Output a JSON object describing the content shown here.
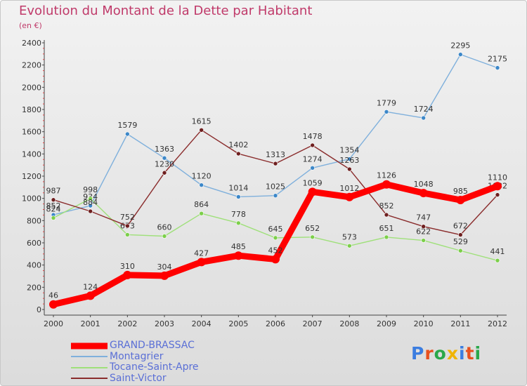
{
  "title": "Evolution du Montant de la Dette par Habitant",
  "unit_label": "(en €)",
  "logo": {
    "text": "Proxiti",
    "letter_colors": [
      "#3b7de0",
      "#e8501e",
      "#2aa84a",
      "#f0b400",
      "#3b7de0",
      "#e8501e",
      "#2aa84a"
    ]
  },
  "chart_data": {
    "type": "line",
    "x": [
      "2000",
      "2001",
      "2002",
      "2003",
      "2004",
      "2005",
      "2006",
      "2007",
      "2008",
      "2009",
      "2010",
      "2011",
      "2012"
    ],
    "ylim": [
      0,
      2400
    ],
    "yticks": [
      0,
      200,
      400,
      600,
      800,
      1000,
      1200,
      1400,
      1600,
      1800,
      2000,
      2200,
      2400
    ],
    "grid": false,
    "legend_position": "bottom-left",
    "series": [
      {
        "name": "GRAND-BRASSAC",
        "color": "#ff0000",
        "emphasis": true,
        "values": [
          46,
          124,
          310,
          304,
          427,
          485,
          452,
          1059,
          1012,
          1126,
          1048,
          985,
          1110
        ]
      },
      {
        "name": "Montagrier",
        "color": "#7fb0dc",
        "point_color": "#3c87c8",
        "emphasis": false,
        "values": [
          852,
          934,
          1579,
          1363,
          1120,
          1014,
          1025,
          1274,
          1354,
          1779,
          1724,
          2295,
          2175
        ]
      },
      {
        "name": "Tocane-Saint-Apre",
        "color": "#9fe07a",
        "point_color": "#7ccf4a",
        "emphasis": false,
        "values": [
          824,
          998,
          673,
          660,
          864,
          778,
          645,
          652,
          573,
          651,
          622,
          529,
          441
        ]
      },
      {
        "name": "Saint-Victor",
        "color": "#8a2c2c",
        "point_color": "#6e1f1f",
        "emphasis": false,
        "values": [
          987,
          884,
          752,
          1230,
          1615,
          1402,
          1313,
          1478,
          1263,
          852,
          747,
          672,
          1032
        ]
      }
    ]
  }
}
